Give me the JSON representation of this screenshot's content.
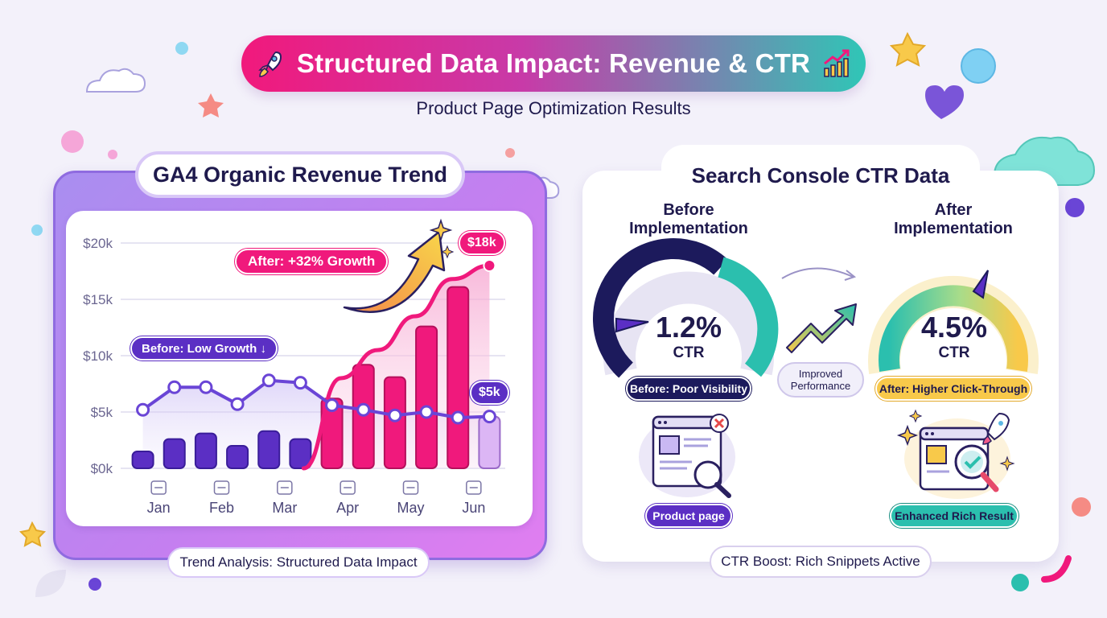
{
  "header": {
    "title": "Structured Data Impact: Revenue & CTR",
    "subtitle": "Product Page Optimization Results",
    "title_icon_left": "rocket-icon",
    "title_icon_right": "growth-chart-icon"
  },
  "colors": {
    "title_gradient": [
      "#f1197c",
      "#c83aa8",
      "#2fc6b6"
    ],
    "before_bar": "#5b2fc4",
    "after_bar": "#f0197c",
    "line": "#6a45d6",
    "growth_curve": "#f0197c",
    "teal": "#2bbfae",
    "yellow": "#f8c94a",
    "navy": "#1c1a5c"
  },
  "revenue_panel": {
    "title": "GA4 Organic Revenue Trend",
    "footer": "Trend Analysis: Structured Data Impact",
    "before_label": "Before: Low Growth ↓",
    "after_label": "After: +32% Growth",
    "peak_label": "$18k",
    "end_label": "$5k",
    "month_icons": [
      "bar-chart-icon",
      "calendar-icon",
      "calendar-grid-icon",
      "bar-chart-icon",
      "cloud-icon",
      "trend-up-icon"
    ]
  },
  "chart_data": {
    "type": "bar",
    "categories": [
      "Jan",
      "Feb",
      "Mar",
      "Apr",
      "May",
      "Jun"
    ],
    "y_ticks": [
      "$0k",
      "$5k",
      "$10k",
      "$15k",
      "$20k"
    ],
    "ylim": [
      0,
      20
    ],
    "bars": [
      {
        "value": 1.5,
        "phase": "before"
      },
      {
        "value": 2.6,
        "phase": "before"
      },
      {
        "value": 3.1,
        "phase": "before"
      },
      {
        "value": 2.0,
        "phase": "before"
      },
      {
        "value": 3.3,
        "phase": "before"
      },
      {
        "value": 2.6,
        "phase": "before"
      },
      {
        "value": 6.2,
        "phase": "after"
      },
      {
        "value": 9.2,
        "phase": "after"
      },
      {
        "value": 8.1,
        "phase": "after"
      },
      {
        "value": 12.6,
        "phase": "after"
      },
      {
        "value": 16.1,
        "phase": "after"
      },
      {
        "value": 4.6,
        "phase": "projected"
      }
    ],
    "trend_line": [
      5.2,
      7.2,
      7.2,
      5.7,
      7.8,
      7.6,
      5.6,
      5.2,
      4.7,
      5.0,
      4.5,
      4.6
    ],
    "growth_curve": [
      0.0,
      8.0,
      10.5,
      13.5,
      16.8,
      18.0
    ],
    "growth_curve_start_index": 6.5,
    "ylabel": "",
    "xlabel": ""
  },
  "ctr_panel": {
    "title": "Search Console CTR Data",
    "footer": "CTR Boost: Rich Snippets Active",
    "before": {
      "title_line1": "Before",
      "title_line2": "Implementation",
      "value": "1.2%",
      "unit": "CTR",
      "badge": "Before: Poor Visibility",
      "icon_label": "Product page",
      "gauge_fraction": 0.27
    },
    "middle": {
      "line1": "Improved",
      "line2": "Performance"
    },
    "after": {
      "title_line1": "After",
      "title_line2": "Implementation",
      "value": "4.5%",
      "unit": "CTR",
      "badge": "After: Higher Click-Through",
      "icon_label": "Enhanced Rich Result",
      "gauge_fraction": 0.8
    }
  }
}
